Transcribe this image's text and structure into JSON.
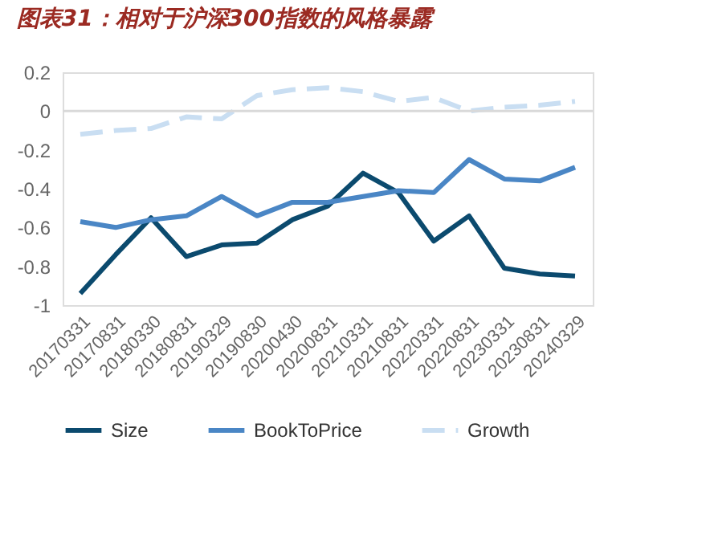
{
  "chart_data": {
    "type": "line",
    "title": "图表31：相对于沪深300指数的风格暴露",
    "categories": [
      "20170331",
      "20170831",
      "20180330",
      "20180831",
      "20190329",
      "20190830",
      "20200430",
      "20200831",
      "20210331",
      "20210831",
      "20220331",
      "20220831",
      "20230331",
      "20230831",
      "20240329"
    ],
    "series": [
      {
        "name": "Size",
        "color": "#0b4a6e",
        "line_style": "solid",
        "values": [
          -0.94,
          -0.74,
          -0.55,
          -0.75,
          -0.69,
          -0.68,
          -0.56,
          -0.49,
          -0.32,
          -0.42,
          -0.67,
          -0.54,
          -0.81,
          -0.84,
          -0.85
        ]
      },
      {
        "name": "BookToPrice",
        "color": "#4a86c5",
        "line_style": "solid",
        "values": [
          -0.57,
          -0.6,
          -0.56,
          -0.54,
          -0.44,
          -0.54,
          -0.47,
          -0.47,
          -0.44,
          -0.41,
          -0.42,
          -0.25,
          -0.35,
          -0.36,
          -0.29
        ]
      },
      {
        "name": "Growth",
        "color": "#c9def2",
        "line_style": "dashed",
        "values": [
          -0.12,
          -0.1,
          -0.09,
          -0.03,
          -0.04,
          0.08,
          0.11,
          0.12,
          0.1,
          0.05,
          0.07,
          0.0,
          0.02,
          0.03,
          0.05
        ]
      }
    ],
    "ylim": [
      -1,
      0.2
    ],
    "yticks": [
      -1,
      -0.8,
      -0.6,
      -0.4,
      -0.2,
      0,
      0.2
    ],
    "ref_lines": [
      {
        "axis": "y",
        "value": 0,
        "color": "#d9d9d9"
      }
    ],
    "grid": false,
    "legend": "bottom",
    "marker": "none"
  }
}
